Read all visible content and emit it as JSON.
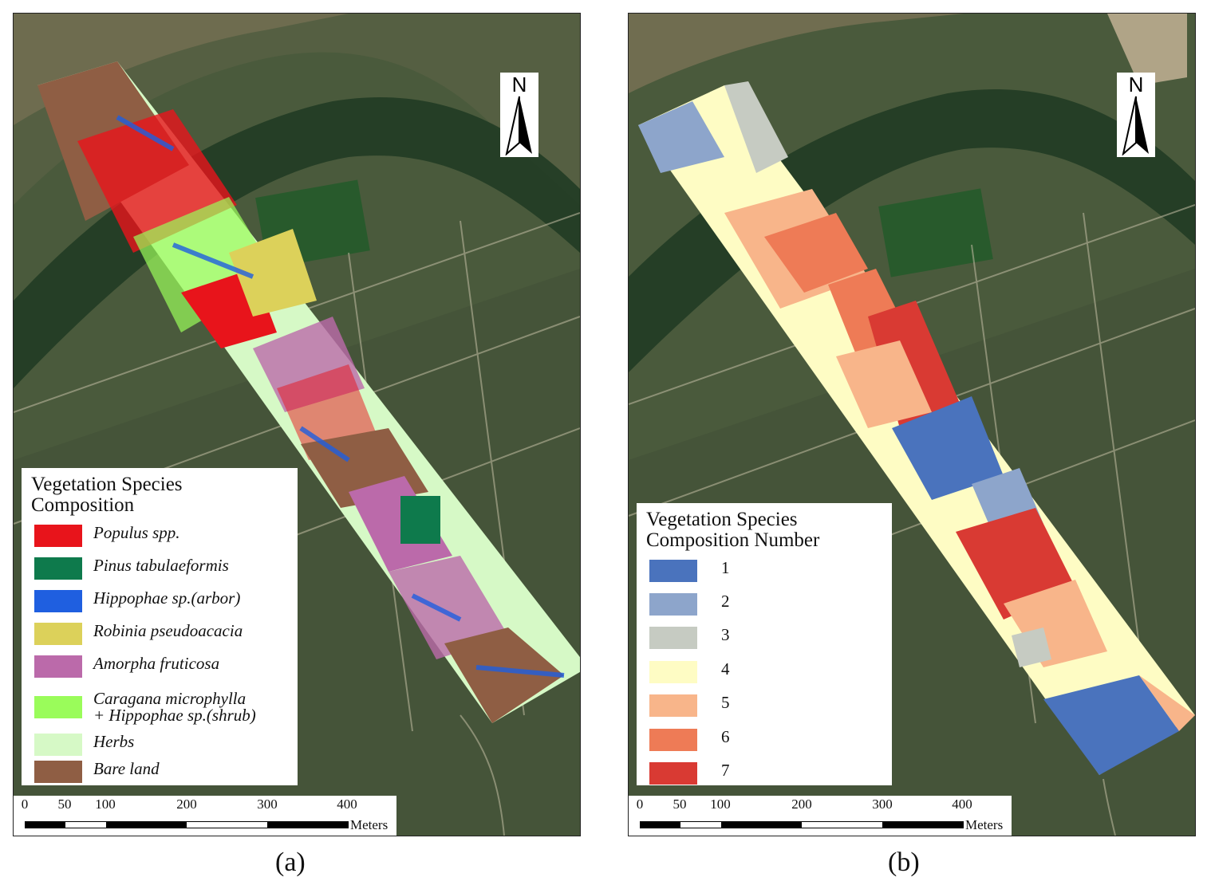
{
  "panels": [
    {
      "id": "a",
      "caption": "(a)",
      "north_label": "N",
      "legend": {
        "title_line1": "Vegetation Species",
        "title_line2": "Composition",
        "items": [
          {
            "label": "Populus spp.",
            "color": "#e8141b"
          },
          {
            "label": "Pinus tabulaeformis",
            "color": "#0e7a4c"
          },
          {
            "label": "Hippophae sp.(arbor)",
            "color": "#1f5fe0"
          },
          {
            "label": "Robinia pseudoacacia",
            "color": "#dcd15a"
          },
          {
            "label": "Amorpha fruticosa",
            "color": "#bb6aaa"
          },
          {
            "label": "Caragana microphylla",
            "label2": "+ Hippophae sp.(shrub)",
            "color": "#9afc5a"
          },
          {
            "label": "Herbs",
            "color": "#d6f9c6"
          },
          {
            "label": "Bare land",
            "color": "#8f5e44"
          }
        ]
      },
      "scale": {
        "ticks": [
          "0",
          "50",
          "100",
          "200",
          "300",
          "400"
        ],
        "unit": "Meters"
      }
    },
    {
      "id": "b",
      "caption": "(b)",
      "north_label": "N",
      "legend": {
        "title_line1": "Vegetation Species",
        "title_line2": "Composition Number",
        "items": [
          {
            "label": "1",
            "color": "#4a73bd"
          },
          {
            "label": "2",
            "color": "#8da5cb"
          },
          {
            "label": "3",
            "color": "#c6cbc2"
          },
          {
            "label": "4",
            "color": "#fefcc4"
          },
          {
            "label": "5",
            "color": "#f8b58a"
          },
          {
            "label": "6",
            "color": "#ee7b56"
          },
          {
            "label": "7",
            "color": "#d93a33"
          }
        ]
      },
      "scale": {
        "ticks": [
          "0",
          "50",
          "100",
          "200",
          "300",
          "400"
        ],
        "unit": "Meters"
      }
    }
  ]
}
